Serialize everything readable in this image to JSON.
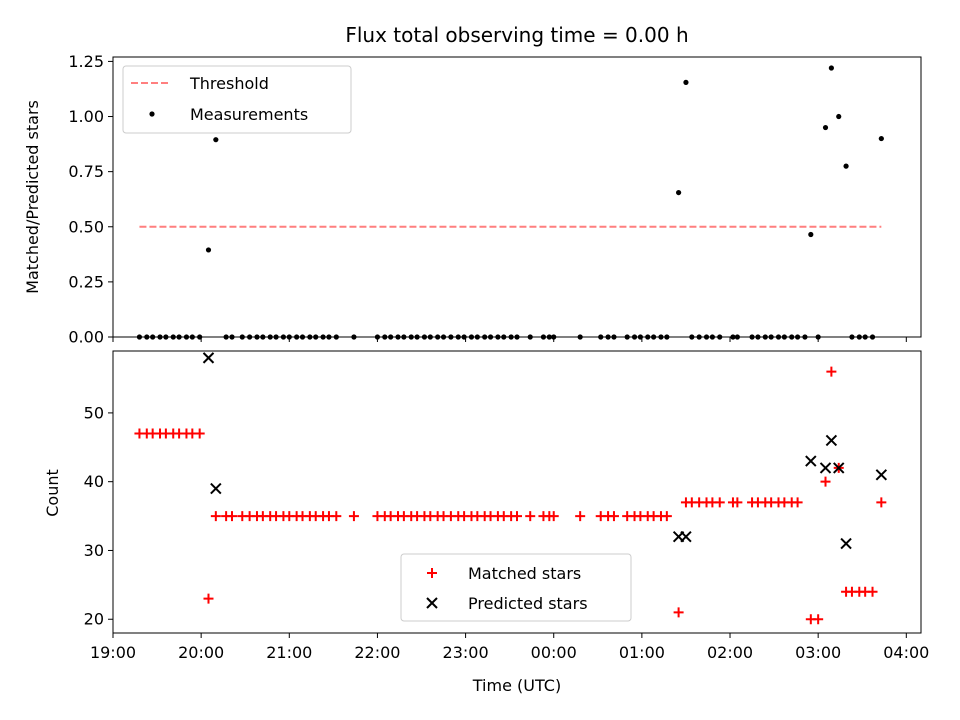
{
  "chart_data": [
    {
      "type": "scatter",
      "title": "Flux total observing time = 0.00 h",
      "xlabel": "",
      "ylabel": "Matched/Predicted stars",
      "ylim": [
        0,
        1.27
      ],
      "xlim": [
        "19:00",
        "04:10"
      ],
      "yticks": [
        "0.00",
        "0.25",
        "0.50",
        "0.75",
        "1.00",
        "1.25"
      ],
      "xtick_labels_shown": false,
      "legend": {
        "placement": "top-left",
        "entries": [
          "Threshold",
          "Measurements"
        ]
      },
      "threshold": {
        "name": "Threshold",
        "value": 0.5,
        "x_from": "19:18",
        "x_to": "03:43",
        "color": "#ff7f7f",
        "style": "dashed"
      },
      "series": [
        {
          "name": "Measurements",
          "color": "#000000",
          "marker": "dot",
          "points": [
            {
              "x": "19:18",
              "y": 0
            },
            {
              "x": "19:23",
              "y": 0
            },
            {
              "x": "19:27",
              "y": 0
            },
            {
              "x": "19:32",
              "y": 0
            },
            {
              "x": "19:36",
              "y": 0
            },
            {
              "x": "19:41",
              "y": 0
            },
            {
              "x": "19:45",
              "y": 0
            },
            {
              "x": "19:50",
              "y": 0
            },
            {
              "x": "19:54",
              "y": 0
            },
            {
              "x": "19:59",
              "y": 0
            },
            {
              "x": "20:05",
              "y": 0.395
            },
            {
              "x": "20:10",
              "y": 0.895
            },
            {
              "x": "20:17",
              "y": 0
            },
            {
              "x": "20:21",
              "y": 0
            },
            {
              "x": "20:28",
              "y": 0
            },
            {
              "x": "20:33",
              "y": 0
            },
            {
              "x": "20:38",
              "y": 0
            },
            {
              "x": "20:42",
              "y": 0
            },
            {
              "x": "20:47",
              "y": 0
            },
            {
              "x": "20:51",
              "y": 0
            },
            {
              "x": "20:56",
              "y": 0
            },
            {
              "x": "21:00",
              "y": 0
            },
            {
              "x": "21:05",
              "y": 0
            },
            {
              "x": "21:09",
              "y": 0
            },
            {
              "x": "21:14",
              "y": 0
            },
            {
              "x": "21:18",
              "y": 0
            },
            {
              "x": "21:23",
              "y": 0
            },
            {
              "x": "21:27",
              "y": 0
            },
            {
              "x": "21:32",
              "y": 0
            },
            {
              "x": "21:44",
              "y": 0
            },
            {
              "x": "22:00",
              "y": 0
            },
            {
              "x": "22:05",
              "y": 0
            },
            {
              "x": "22:09",
              "y": 0
            },
            {
              "x": "22:14",
              "y": 0
            },
            {
              "x": "22:18",
              "y": 0
            },
            {
              "x": "22:23",
              "y": 0
            },
            {
              "x": "22:27",
              "y": 0
            },
            {
              "x": "22:32",
              "y": 0
            },
            {
              "x": "22:36",
              "y": 0
            },
            {
              "x": "22:41",
              "y": 0
            },
            {
              "x": "22:45",
              "y": 0
            },
            {
              "x": "22:50",
              "y": 0
            },
            {
              "x": "22:55",
              "y": 0
            },
            {
              "x": "22:59",
              "y": 0
            },
            {
              "x": "23:04",
              "y": 0
            },
            {
              "x": "23:08",
              "y": 0
            },
            {
              "x": "23:13",
              "y": 0
            },
            {
              "x": "23:17",
              "y": 0
            },
            {
              "x": "23:22",
              "y": 0
            },
            {
              "x": "23:26",
              "y": 0
            },
            {
              "x": "23:31",
              "y": 0
            },
            {
              "x": "23:35",
              "y": 0
            },
            {
              "x": "23:44",
              "y": 0
            },
            {
              "x": "23:53",
              "y": 0
            },
            {
              "x": "23:57",
              "y": 0
            },
            {
              "x": "00:00",
              "y": 0
            },
            {
              "x": "00:18",
              "y": 0
            },
            {
              "x": "00:32",
              "y": 0
            },
            {
              "x": "00:37",
              "y": 0
            },
            {
              "x": "00:41",
              "y": 0
            },
            {
              "x": "00:50",
              "y": 0
            },
            {
              "x": "00:55",
              "y": 0
            },
            {
              "x": "00:59",
              "y": 0
            },
            {
              "x": "01:04",
              "y": 0
            },
            {
              "x": "01:08",
              "y": 0
            },
            {
              "x": "01:13",
              "y": 0
            },
            {
              "x": "01:17",
              "y": 0
            },
            {
              "x": "01:25",
              "y": 0.655
            },
            {
              "x": "01:30",
              "y": 1.155
            },
            {
              "x": "01:34",
              "y": 0
            },
            {
              "x": "01:39",
              "y": 0
            },
            {
              "x": "01:44",
              "y": 0
            },
            {
              "x": "01:48",
              "y": 0
            },
            {
              "x": "01:53",
              "y": 0
            },
            {
              "x": "02:02",
              "y": 0
            },
            {
              "x": "02:05",
              "y": 0
            },
            {
              "x": "02:15",
              "y": 0
            },
            {
              "x": "02:19",
              "y": 0
            },
            {
              "x": "02:24",
              "y": 0
            },
            {
              "x": "02:28",
              "y": 0
            },
            {
              "x": "02:33",
              "y": 0
            },
            {
              "x": "02:37",
              "y": 0
            },
            {
              "x": "02:42",
              "y": 0
            },
            {
              "x": "02:46",
              "y": 0
            },
            {
              "x": "02:51",
              "y": 0
            },
            {
              "x": "02:55",
              "y": 0.465
            },
            {
              "x": "03:00",
              "y": 0
            },
            {
              "x": "03:05",
              "y": 0.95
            },
            {
              "x": "03:09",
              "y": 1.22
            },
            {
              "x": "03:14",
              "y": 1.0
            },
            {
              "x": "03:19",
              "y": 0.775
            },
            {
              "x": "03:23",
              "y": 0
            },
            {
              "x": "03:28",
              "y": 0
            },
            {
              "x": "03:32",
              "y": 0
            },
            {
              "x": "03:37",
              "y": 0
            },
            {
              "x": "03:43",
              "y": 0.9
            }
          ]
        }
      ]
    },
    {
      "type": "scatter",
      "title": "",
      "xlabel": "Time (UTC)",
      "ylabel": "Count",
      "ylim": [
        18,
        59
      ],
      "xlim": [
        "19:00",
        "04:10"
      ],
      "yticks": [
        "20",
        "30",
        "40",
        "50"
      ],
      "xticks": [
        "19:00",
        "20:00",
        "21:00",
        "22:00",
        "23:00",
        "00:00",
        "01:00",
        "02:00",
        "03:00",
        "04:00"
      ],
      "legend": {
        "placement": "bottom-center",
        "entries": [
          "Matched stars",
          "Predicted stars"
        ]
      },
      "series": [
        {
          "name": "Matched stars",
          "color": "#ff0000",
          "marker": "plus",
          "points": [
            {
              "x": "19:18",
              "y": 47
            },
            {
              "x": "19:23",
              "y": 47
            },
            {
              "x": "19:27",
              "y": 47
            },
            {
              "x": "19:32",
              "y": 47
            },
            {
              "x": "19:36",
              "y": 47
            },
            {
              "x": "19:41",
              "y": 47
            },
            {
              "x": "19:45",
              "y": 47
            },
            {
              "x": "19:50",
              "y": 47
            },
            {
              "x": "19:54",
              "y": 47
            },
            {
              "x": "19:59",
              "y": 47
            },
            {
              "x": "20:05",
              "y": 23
            },
            {
              "x": "20:10",
              "y": 35
            },
            {
              "x": "20:17",
              "y": 35
            },
            {
              "x": "20:21",
              "y": 35
            },
            {
              "x": "20:28",
              "y": 35
            },
            {
              "x": "20:33",
              "y": 35
            },
            {
              "x": "20:38",
              "y": 35
            },
            {
              "x": "20:42",
              "y": 35
            },
            {
              "x": "20:47",
              "y": 35
            },
            {
              "x": "20:51",
              "y": 35
            },
            {
              "x": "20:56",
              "y": 35
            },
            {
              "x": "21:00",
              "y": 35
            },
            {
              "x": "21:05",
              "y": 35
            },
            {
              "x": "21:09",
              "y": 35
            },
            {
              "x": "21:14",
              "y": 35
            },
            {
              "x": "21:18",
              "y": 35
            },
            {
              "x": "21:23",
              "y": 35
            },
            {
              "x": "21:27",
              "y": 35
            },
            {
              "x": "21:32",
              "y": 35
            },
            {
              "x": "21:44",
              "y": 35
            },
            {
              "x": "22:00",
              "y": 35
            },
            {
              "x": "22:05",
              "y": 35
            },
            {
              "x": "22:09",
              "y": 35
            },
            {
              "x": "22:14",
              "y": 35
            },
            {
              "x": "22:18",
              "y": 35
            },
            {
              "x": "22:23",
              "y": 35
            },
            {
              "x": "22:27",
              "y": 35
            },
            {
              "x": "22:32",
              "y": 35
            },
            {
              "x": "22:36",
              "y": 35
            },
            {
              "x": "22:41",
              "y": 35
            },
            {
              "x": "22:45",
              "y": 35
            },
            {
              "x": "22:50",
              "y": 35
            },
            {
              "x": "22:55",
              "y": 35
            },
            {
              "x": "22:59",
              "y": 35
            },
            {
              "x": "23:04",
              "y": 35
            },
            {
              "x": "23:08",
              "y": 35
            },
            {
              "x": "23:13",
              "y": 35
            },
            {
              "x": "23:17",
              "y": 35
            },
            {
              "x": "23:22",
              "y": 35
            },
            {
              "x": "23:26",
              "y": 35
            },
            {
              "x": "23:31",
              "y": 35
            },
            {
              "x": "23:35",
              "y": 35
            },
            {
              "x": "23:44",
              "y": 35
            },
            {
              "x": "23:53",
              "y": 35
            },
            {
              "x": "23:57",
              "y": 35
            },
            {
              "x": "00:00",
              "y": 35
            },
            {
              "x": "00:18",
              "y": 35
            },
            {
              "x": "00:32",
              "y": 35
            },
            {
              "x": "00:37",
              "y": 35
            },
            {
              "x": "00:41",
              "y": 35
            },
            {
              "x": "00:50",
              "y": 35
            },
            {
              "x": "00:55",
              "y": 35
            },
            {
              "x": "00:59",
              "y": 35
            },
            {
              "x": "01:04",
              "y": 35
            },
            {
              "x": "01:08",
              "y": 35
            },
            {
              "x": "01:13",
              "y": 35
            },
            {
              "x": "01:17",
              "y": 35
            },
            {
              "x": "01:25",
              "y": 21
            },
            {
              "x": "01:30",
              "y": 37
            },
            {
              "x": "01:34",
              "y": 37
            },
            {
              "x": "01:39",
              "y": 37
            },
            {
              "x": "01:44",
              "y": 37
            },
            {
              "x": "01:48",
              "y": 37
            },
            {
              "x": "01:53",
              "y": 37
            },
            {
              "x": "02:02",
              "y": 37
            },
            {
              "x": "02:05",
              "y": 37
            },
            {
              "x": "02:15",
              "y": 37
            },
            {
              "x": "02:19",
              "y": 37
            },
            {
              "x": "02:24",
              "y": 37
            },
            {
              "x": "02:28",
              "y": 37
            },
            {
              "x": "02:33",
              "y": 37
            },
            {
              "x": "02:37",
              "y": 37
            },
            {
              "x": "02:42",
              "y": 37
            },
            {
              "x": "02:46",
              "y": 37
            },
            {
              "x": "02:55",
              "y": 20
            },
            {
              "x": "03:00",
              "y": 20
            },
            {
              "x": "03:05",
              "y": 40
            },
            {
              "x": "03:09",
              "y": 56
            },
            {
              "x": "03:14",
              "y": 42
            },
            {
              "x": "03:19",
              "y": 24
            },
            {
              "x": "03:23",
              "y": 24
            },
            {
              "x": "03:28",
              "y": 24
            },
            {
              "x": "03:32",
              "y": 24
            },
            {
              "x": "03:37",
              "y": 24
            },
            {
              "x": "03:43",
              "y": 37
            }
          ]
        },
        {
          "name": "Predicted stars",
          "color": "#000000",
          "marker": "x",
          "points": [
            {
              "x": "20:05",
              "y": 58
            },
            {
              "x": "20:10",
              "y": 39
            },
            {
              "x": "01:25",
              "y": 32
            },
            {
              "x": "01:30",
              "y": 32
            },
            {
              "x": "02:55",
              "y": 43
            },
            {
              "x": "03:05",
              "y": 42
            },
            {
              "x": "03:09",
              "y": 46
            },
            {
              "x": "03:14",
              "y": 42
            },
            {
              "x": "03:19",
              "y": 31
            },
            {
              "x": "03:43",
              "y": 41
            }
          ]
        }
      ]
    }
  ]
}
